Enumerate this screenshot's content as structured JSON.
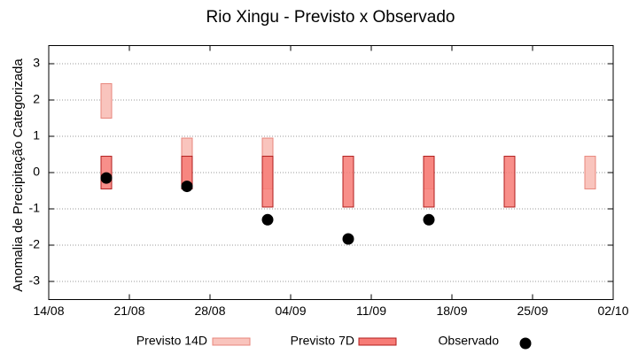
{
  "chart_data": {
    "type": "range",
    "title": "Rio Xingu - Previsto x Observado",
    "y_label": "Anomalia de Precipitação Categorizada",
    "x": [
      "19/08",
      "26/08",
      "02/09",
      "09/09",
      "16/09",
      "23/09",
      "30/09"
    ],
    "xlim": [
      "14/08",
      "02/10"
    ],
    "xticks": [
      "14/08",
      "21/08",
      "28/08",
      "04/09",
      "11/09",
      "18/09",
      "25/09",
      "02/10"
    ],
    "ylim": [
      -3.5,
      3.5
    ],
    "yticks": [
      -3,
      -2,
      -1,
      0,
      1,
      2,
      3
    ],
    "grid": true,
    "series": [
      {
        "name": "Previsto 14D",
        "kind": "box",
        "color": "#f9c4bd",
        "edge": "#e8867c",
        "low": [
          1.5,
          -0.45,
          -0.45,
          null,
          -0.45,
          null,
          -0.45
        ],
        "high": [
          2.45,
          0.95,
          0.95,
          null,
          0.45,
          null,
          0.45
        ]
      },
      {
        "name": "Previsto 7D",
        "kind": "box",
        "color": "#f77b76",
        "edge": "#b01c1c",
        "low": [
          -0.45,
          -0.45,
          -0.95,
          -0.95,
          -0.95,
          -0.95,
          null
        ],
        "high": [
          0.45,
          0.45,
          0.45,
          0.45,
          0.45,
          0.45,
          null
        ]
      },
      {
        "name": "Observado",
        "kind": "dot",
        "color": "#000000",
        "values": [
          -0.15,
          -0.38,
          -1.3,
          -1.83,
          -1.3,
          null,
          null
        ]
      }
    ]
  }
}
